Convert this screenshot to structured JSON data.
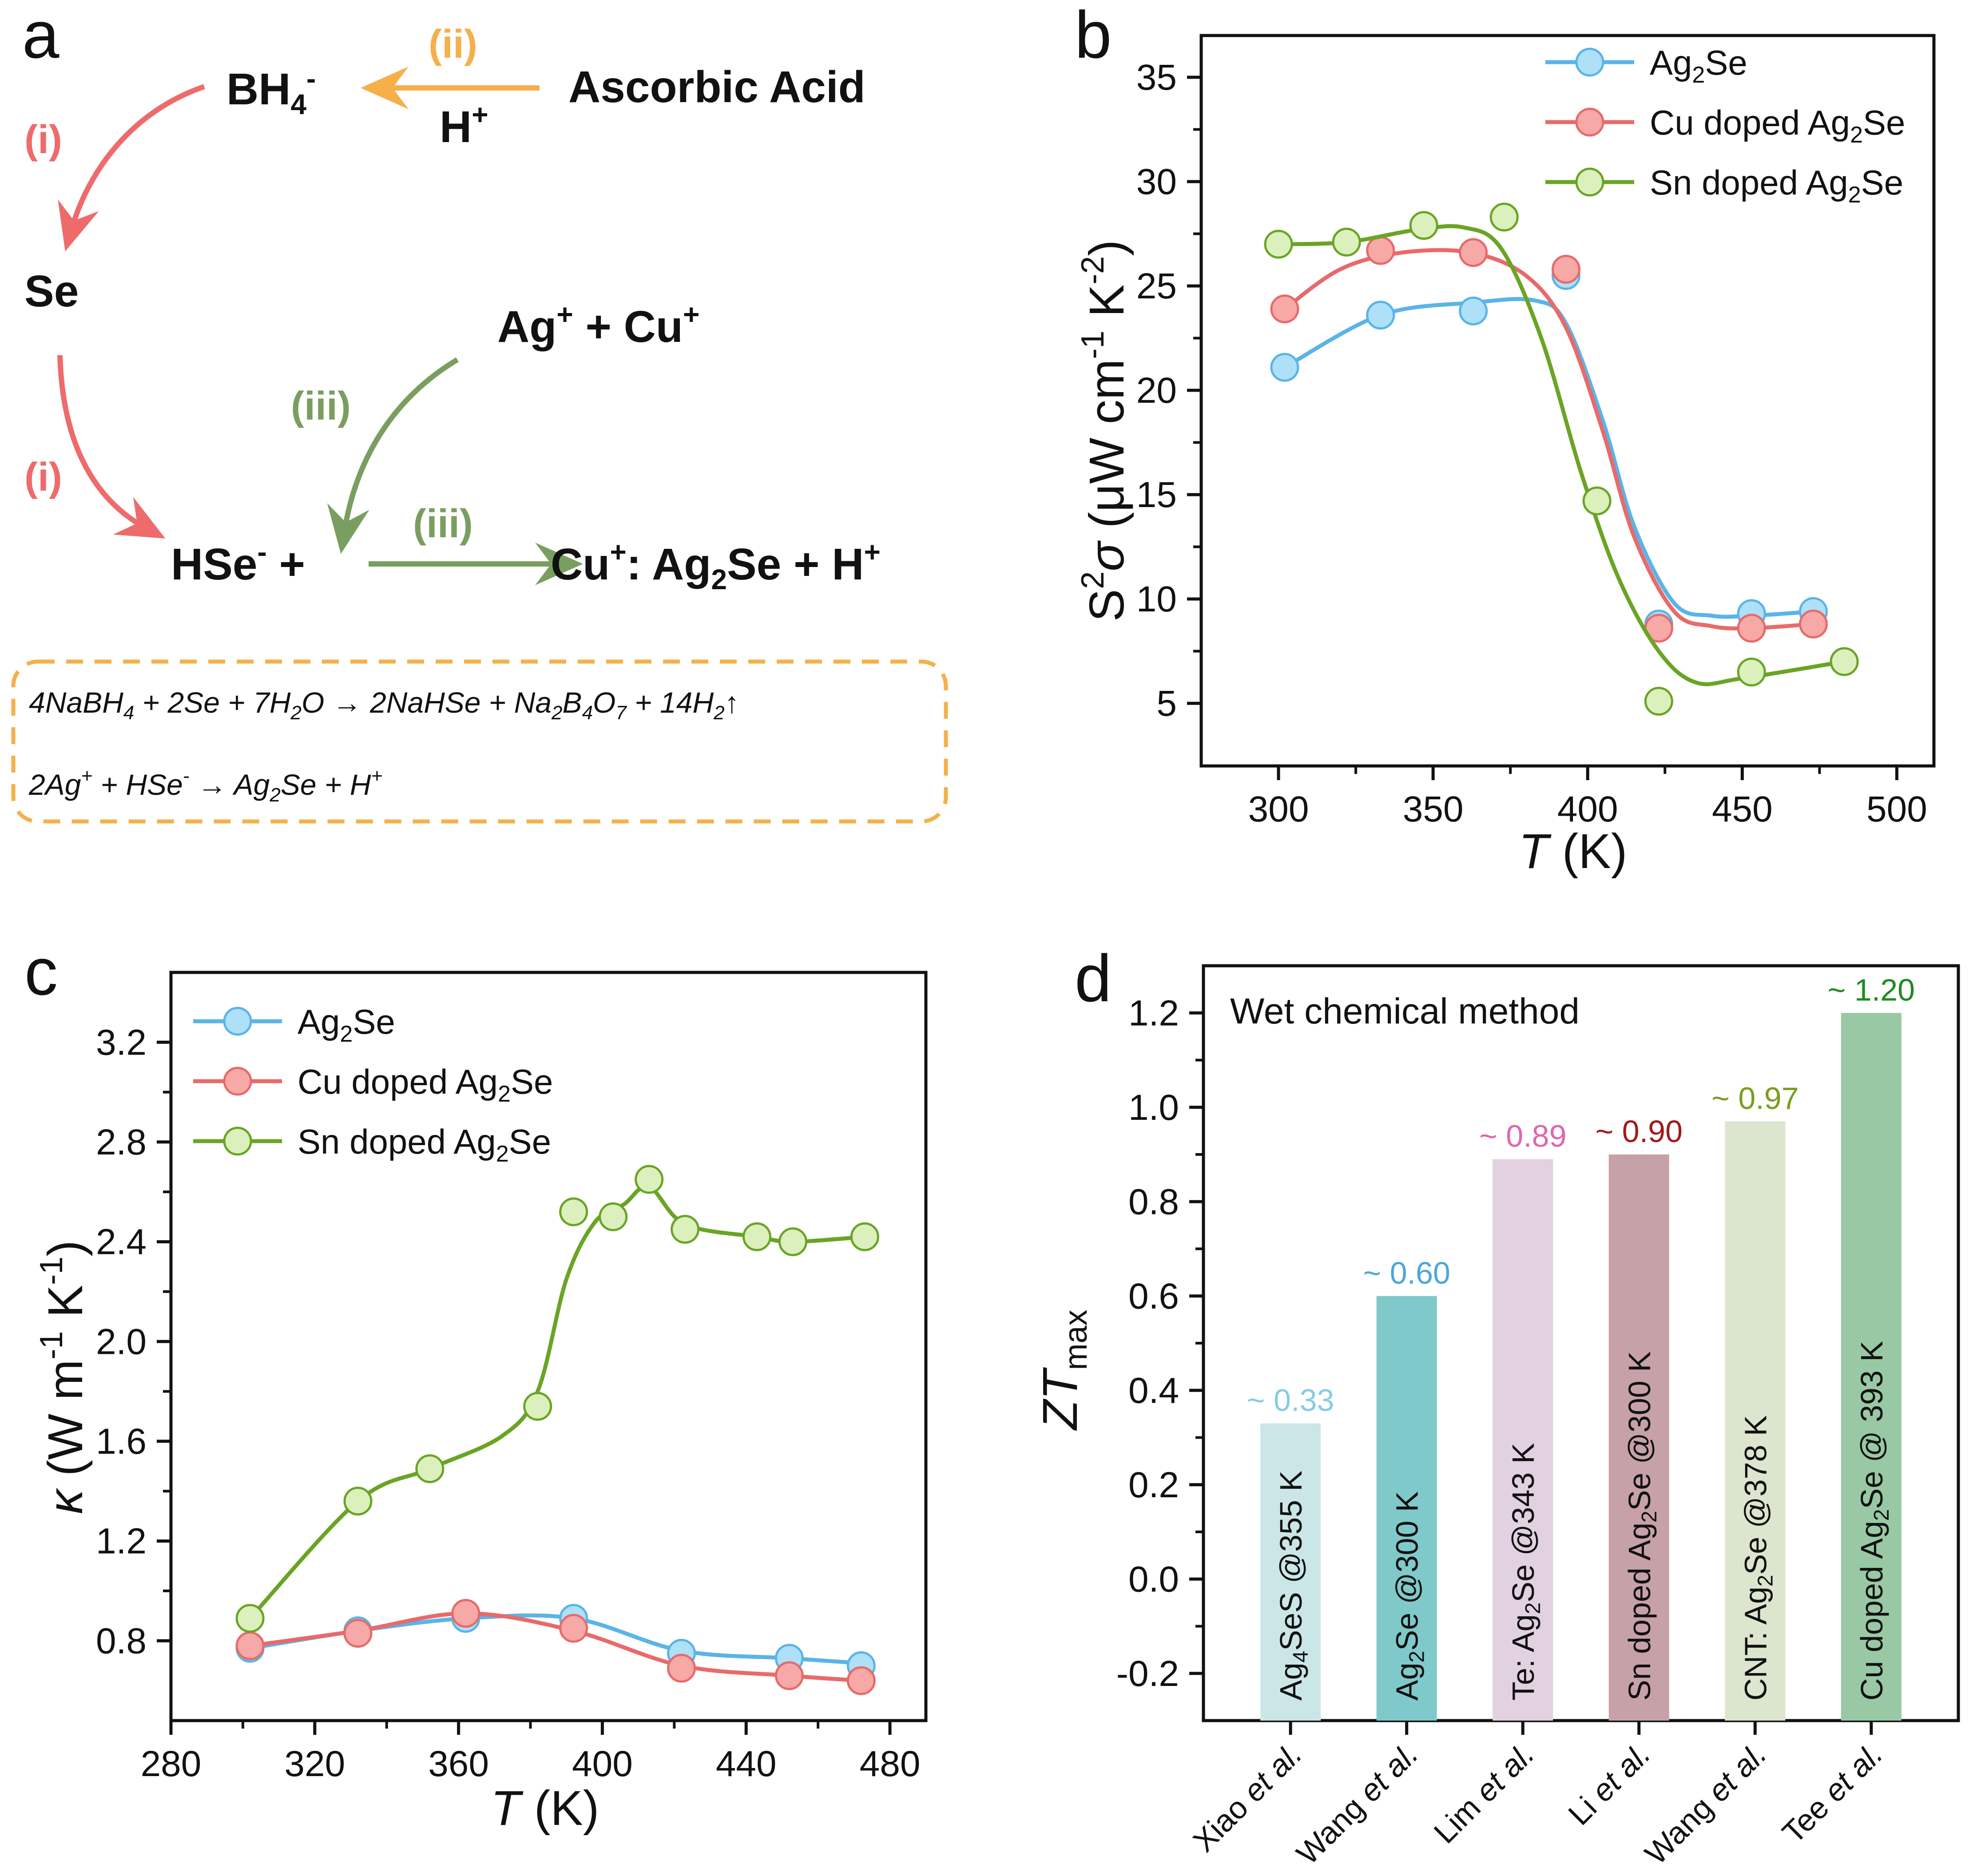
{
  "panel_letters": {
    "a": "a",
    "b": "b",
    "c": "c",
    "d": "d"
  },
  "scheme": {
    "bh4": "BH",
    "bh4_sub": "4",
    "bh4_sup": "-",
    "ascorbic": "Ascorbic Acid",
    "h_plus": "H",
    "plus_sup": "+",
    "step_i": "(i)",
    "step_ii": "(ii)",
    "step_iii": "(iii)",
    "se": "Se",
    "ag": "Ag",
    "plus_cu": " + Cu",
    "hse": "HSe",
    "hse_sup": "-",
    "plus_sign": " +",
    "product_prefix": "Cu",
    "product_colon": ": Ag",
    "product_sub": "2",
    "product_tail": "Se + H",
    "colors": {
      "i": "#ee6b6b",
      "ii": "#f5b04a",
      "iii": "#7a9e60",
      "box": "#f5b04a"
    },
    "eq1": {
      "p1": "4NaBH",
      "s1": "4",
      "p2": " + 2Se + 7H",
      "s2": "2",
      "p3": "O → 2NaHSe + Na",
      "s3": "2",
      "p4": "B",
      "s4": "4",
      "p5": "O",
      "s5": "7",
      "p6": " + 14H",
      "s6": "2",
      "p7": "↑"
    },
    "eq2": {
      "p1": "2Ag",
      "sup1": "+",
      "p2": " + HSe",
      "sup2": "-",
      "p3": " → Ag",
      "s3": "2",
      "p4": "Se + H",
      "sup4": "+"
    }
  },
  "chart_data": [
    {
      "panel": "b",
      "type": "line",
      "title": "",
      "xlabel": "T (K)",
      "ylabel": "S2σ (μW cm-1 K-2)",
      "xlim": [
        275,
        512
      ],
      "ylim": [
        2,
        37
      ],
      "xticks": [
        300,
        350,
        400,
        450,
        500
      ],
      "yticks": [
        5,
        10,
        15,
        20,
        25,
        30,
        35
      ],
      "legend": "top-right",
      "series": [
        {
          "name": "Ag2Se",
          "label_main": "Ag",
          "label_sub": "2",
          "label_tail": "Se",
          "color": "#5ab4e8",
          "fill": "#aee0f7",
          "points": [
            [
              302,
              21.1
            ],
            [
              333,
              23.6
            ],
            [
              363,
              23.8
            ],
            [
              393,
              25.5
            ],
            [
              423,
              8.8
            ],
            [
              453,
              9.3
            ],
            [
              473,
              9.4
            ]
          ],
          "curve": [
            [
              302,
              21.1
            ],
            [
              333,
              23.6
            ],
            [
              363,
              24.2
            ],
            [
              383,
              24.3
            ],
            [
              393,
              23.2
            ],
            [
              405,
              18.5
            ],
            [
              415,
              13.5
            ],
            [
              428,
              9.8
            ],
            [
              440,
              9.2
            ],
            [
              453,
              9.2
            ],
            [
              473,
              9.4
            ]
          ]
        },
        {
          "name": "Cu doped Ag2Se",
          "label_main": "Cu doped Ag",
          "label_sub": "2",
          "label_tail": "Se",
          "color": "#e86a6a",
          "fill": "#f7a9a7",
          "points": [
            [
              302,
              23.9
            ],
            [
              333,
              26.7
            ],
            [
              363,
              26.6
            ],
            [
              393,
              25.8
            ],
            [
              423,
              8.6
            ],
            [
              453,
              8.6
            ],
            [
              473,
              8.8
            ]
          ],
          "curve": [
            [
              302,
              23.9
            ],
            [
              320,
              25.8
            ],
            [
              340,
              26.6
            ],
            [
              362,
              26.6
            ],
            [
              380,
              25.5
            ],
            [
              393,
              23.0
            ],
            [
              405,
              18.0
            ],
            [
              415,
              13.0
            ],
            [
              428,
              9.4
            ],
            [
              440,
              8.7
            ],
            [
              453,
              8.6
            ],
            [
              473,
              8.8
            ]
          ]
        },
        {
          "name": "Sn doped Ag2Se",
          "label_main": "Sn doped Ag",
          "label_sub": "2",
          "label_tail": "Se",
          "color": "#6aa425",
          "fill": "#dcf0bd",
          "points": [
            [
              300,
              27.0
            ],
            [
              322,
              27.1
            ],
            [
              347,
              27.9
            ],
            [
              373,
              28.3
            ],
            [
              403,
              14.7
            ],
            [
              423,
              5.1
            ],
            [
              453,
              6.5
            ],
            [
              483,
              7.0
            ]
          ],
          "curve": [
            [
              300,
              27.0
            ],
            [
              322,
              27.1
            ],
            [
              345,
              27.7
            ],
            [
              360,
              27.8
            ],
            [
              372,
              26.8
            ],
            [
              385,
              22.5
            ],
            [
              398,
              16.0
            ],
            [
              410,
              11.0
            ],
            [
              423,
              7.5
            ],
            [
              435,
              6.0
            ],
            [
              450,
              6.2
            ],
            [
              483,
              7.0
            ]
          ]
        }
      ]
    },
    {
      "panel": "c",
      "type": "line",
      "title": "",
      "xlabel": "T (K)",
      "ylabel": "κ (W m-1 K-1)",
      "xlim": [
        280,
        490
      ],
      "ylim": [
        0.48,
        3.48
      ],
      "xticks": [
        280,
        320,
        360,
        400,
        440,
        480
      ],
      "yticks": [
        0.8,
        1.2,
        1.6,
        2.0,
        2.4,
        2.8,
        3.2
      ],
      "legend": "top-left",
      "series": [
        {
          "name": "Ag2Se",
          "label_main": "Ag",
          "label_sub": "2",
          "label_tail": "Se",
          "color": "#5ab4e8",
          "fill": "#aee0f7",
          "points": [
            [
              302,
              0.77
            ],
            [
              332,
              0.84
            ],
            [
              362,
              0.89
            ],
            [
              392,
              0.89
            ],
            [
              422,
              0.75
            ],
            [
              452,
              0.73
            ],
            [
              472,
              0.7
            ]
          ],
          "curve": [
            [
              302,
              0.77
            ],
            [
              332,
              0.84
            ],
            [
              362,
              0.89
            ],
            [
              392,
              0.89
            ],
            [
              422,
              0.76
            ],
            [
              452,
              0.73
            ],
            [
              472,
              0.71
            ]
          ]
        },
        {
          "name": "Cu doped Ag2Se",
          "label_main": "Cu doped Ag",
          "label_sub": "2",
          "label_tail": "Se",
          "color": "#e86a6a",
          "fill": "#f7a9a7",
          "points": [
            [
              302,
              0.78
            ],
            [
              332,
              0.83
            ],
            [
              362,
              0.91
            ],
            [
              392,
              0.85
            ],
            [
              422,
              0.69
            ],
            [
              452,
              0.66
            ],
            [
              472,
              0.64
            ]
          ],
          "curve": [
            [
              302,
              0.78
            ],
            [
              332,
              0.84
            ],
            [
              362,
              0.91
            ],
            [
              392,
              0.84
            ],
            [
              422,
              0.7
            ],
            [
              452,
              0.66
            ],
            [
              472,
              0.64
            ]
          ]
        },
        {
          "name": "Sn doped Ag2Se",
          "label_main": "Sn doped Ag",
          "label_sub": "2",
          "label_tail": "Se",
          "color": "#6aa425",
          "fill": "#dcf0bd",
          "points": [
            [
              302,
              0.89
            ],
            [
              332,
              1.36
            ],
            [
              352,
              1.49
            ],
            [
              382,
              1.74
            ],
            [
              392,
              2.52
            ],
            [
              403,
              2.5
            ],
            [
              413,
              2.65
            ],
            [
              423,
              2.45
            ],
            [
              443,
              2.42
            ],
            [
              453,
              2.4
            ],
            [
              473,
              2.42
            ]
          ],
          "curve": [
            [
              302,
              0.89
            ],
            [
              332,
              1.36
            ],
            [
              352,
              1.49
            ],
            [
              372,
              1.62
            ],
            [
              382,
              1.8
            ],
            [
              390,
              2.25
            ],
            [
              398,
              2.48
            ],
            [
              406,
              2.55
            ],
            [
              413,
              2.62
            ],
            [
              423,
              2.47
            ],
            [
              443,
              2.42
            ],
            [
              453,
              2.4
            ],
            [
              473,
              2.42
            ]
          ]
        }
      ]
    },
    {
      "panel": "d",
      "type": "bar",
      "annotation": "Wet chemical method",
      "xlabel": "",
      "ylabel": "ZTmax",
      "ylim": [
        -0.3,
        1.3
      ],
      "yticks": [
        -0.2,
        0.0,
        0.2,
        0.4,
        0.6,
        0.8,
        1.0,
        1.2
      ],
      "categories": [
        {
          "author": "Xiao ",
          "etal": "et al."
        },
        {
          "author": "Wang ",
          "etal": "et al."
        },
        {
          "author": "Lim ",
          "etal": "et al."
        },
        {
          "author": "Li ",
          "etal": "et al."
        },
        {
          "author": "Wang ",
          "etal": "et al."
        },
        {
          "author": "Tee ",
          "etal": "et al."
        }
      ],
      "values": [
        0.33,
        0.6,
        0.89,
        0.9,
        0.97,
        1.2
      ],
      "value_labels": [
        "~ 0.33",
        "~ 0.60",
        "~ 0.89",
        "~ 0.90",
        "~ 0.97",
        "~ 1.20"
      ],
      "bar_colors": [
        "#cbe6e6",
        "#7fc9cb",
        "#e2d1e0",
        "#c7a1a8",
        "#dce5cd",
        "#98c9a4"
      ],
      "label_colors": [
        "#87cbe6",
        "#4aa8d8",
        "#e066b0",
        "#a01a1a",
        "#7a9e1e",
        "#1f8a1f"
      ],
      "bar_texts": [
        {
          "a": "Ag",
          "s1": "4",
          "b": "SeS @355 K",
          "s2": "",
          "c": ""
        },
        {
          "a": "Ag",
          "s1": "2",
          "b": "Se @300 K",
          "s2": "",
          "c": ""
        },
        {
          "a": "Te: Ag",
          "s1": "2",
          "b": "Se @343 K",
          "s2": "",
          "c": ""
        },
        {
          "a": "Sn doped Ag",
          "s1": "2",
          "b": "Se @300 K",
          "s2": "",
          "c": ""
        },
        {
          "a": "CNT: Ag",
          "s1": "2",
          "b": "Se @378 K",
          "s2": "",
          "c": ""
        },
        {
          "a": "Cu doped Ag",
          "s1": "2",
          "b": "Se @ 393 K",
          "s2": "",
          "c": ""
        }
      ]
    }
  ],
  "axis_text": {
    "T": "T",
    "K": " (K)",
    "S": "S",
    "S_sup": "2",
    "sigma": "σ",
    "b_unit": " (μW cm",
    "minus1": "-1",
    "b_K": " K",
    "minus2": "-2",
    "close": ")",
    "kappa": "κ",
    "c_unit": " (W m",
    "ZT": "ZT",
    "max": "max"
  }
}
